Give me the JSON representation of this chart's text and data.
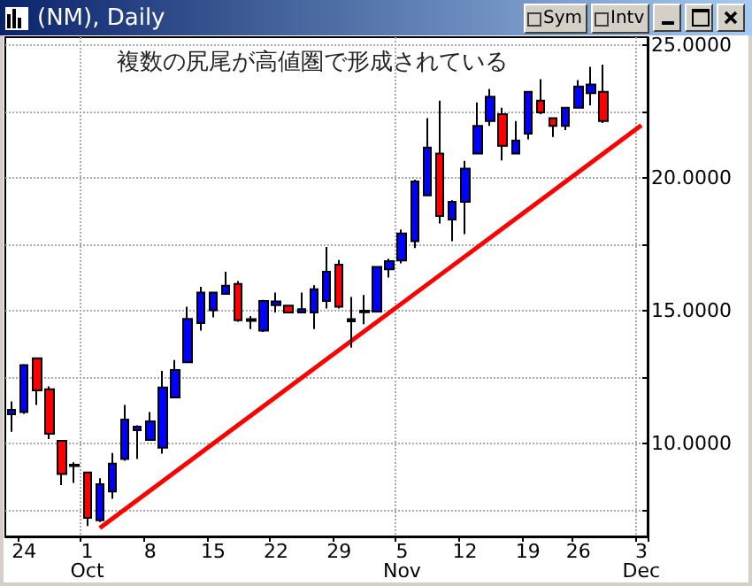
{
  "chart_data": {
    "type": "candlestick",
    "title": "(NM), Daily",
    "annotations": [
      "複数の尻尾が高値圏で形成されている",
      "Sym",
      "Intv"
    ],
    "categories": [
      null,
      "24",
      null,
      null,
      null,
      null,
      "1\nOct",
      null,
      null,
      null,
      null,
      "8",
      null,
      null,
      null,
      null,
      "15",
      null,
      null,
      null,
      null,
      "22",
      null,
      null,
      null,
      null,
      "29",
      null,
      null,
      null,
      null,
      "5\nNov",
      null,
      null,
      null,
      null,
      "12",
      null,
      null,
      null,
      null,
      "19",
      null,
      null,
      null,
      "26",
      null,
      null,
      null,
      null,
      "3\nDec"
    ],
    "ohlc": [
      [
        11.1,
        11.58,
        10.44,
        11.27
      ],
      [
        11.18,
        12.99,
        11.12,
        12.95
      ],
      [
        13.21,
        13.21,
        11.45,
        12.0
      ],
      [
        12.04,
        12.15,
        10.17,
        10.37
      ],
      [
        10.1,
        10.1,
        8.43,
        8.85
      ],
      [
        9.2,
        9.29,
        8.52,
        9.15
      ],
      [
        8.91,
        8.91,
        6.89,
        7.2
      ],
      [
        7.11,
        8.69,
        7.04,
        8.47
      ],
      [
        8.19,
        9.64,
        7.92,
        9.24
      ],
      [
        9.42,
        11.45,
        9.35,
        10.9
      ],
      [
        10.5,
        10.68,
        9.42,
        10.63
      ],
      [
        10.13,
        11.18,
        10.13,
        10.83
      ],
      [
        9.84,
        12.73,
        9.62,
        12.11
      ],
      [
        11.73,
        13.14,
        11.73,
        12.77
      ],
      [
        13.06,
        15.15,
        13.06,
        14.69
      ],
      [
        14.53,
        15.9,
        14.25,
        15.68
      ],
      [
        15.02,
        15.68,
        14.75,
        15.68
      ],
      [
        15.63,
        16.47,
        15.63,
        15.94
      ],
      [
        16.01,
        16.12,
        14.58,
        14.64
      ],
      [
        14.68,
        14.8,
        14.31,
        14.62
      ],
      [
        14.25,
        15.41,
        14.2,
        15.37
      ],
      [
        15.21,
        15.68,
        14.93,
        15.35
      ],
      [
        15.19,
        15.19,
        14.93,
        14.93
      ],
      [
        14.93,
        15.68,
        14.93,
        15.06
      ],
      [
        14.93,
        15.96,
        14.31,
        15.81
      ],
      [
        15.37,
        17.4,
        15.08,
        16.47
      ],
      [
        16.73,
        16.91,
        15.08,
        15.15
      ],
      [
        14.68,
        15.52,
        13.61,
        14.6
      ],
      [
        15.0,
        15.59,
        14.49,
        14.94
      ],
      [
        14.97,
        16.65,
        14.97,
        16.65
      ],
      [
        16.56,
        16.96,
        16.25,
        16.87
      ],
      [
        16.89,
        18.06,
        16.78,
        17.91
      ],
      [
        17.62,
        19.93,
        17.36,
        19.87
      ],
      [
        19.34,
        22.25,
        19.34,
        21.14
      ],
      [
        20.92,
        22.91,
        18.28,
        18.57
      ],
      [
        18.43,
        19.16,
        17.62,
        19.1
      ],
      [
        19.1,
        20.64,
        17.88,
        20.35
      ],
      [
        20.92,
        22.84,
        20.92,
        21.96
      ],
      [
        22.14,
        23.35,
        21.96,
        23.06
      ],
      [
        22.4,
        22.64,
        20.66,
        21.21
      ],
      [
        20.92,
        22.14,
        20.92,
        21.41
      ],
      [
        21.67,
        23.24,
        21.45,
        23.24
      ],
      [
        22.91,
        23.72,
        22.4,
        22.47
      ],
      [
        22.25,
        22.25,
        21.54,
        21.96
      ],
      [
        21.96,
        22.64,
        21.8,
        22.64
      ],
      [
        22.64,
        23.68,
        22.64,
        23.44
      ],
      [
        23.19,
        24.18,
        22.73,
        23.52
      ],
      [
        23.24,
        24.27,
        22.07,
        22.14
      ],
      null,
      null,
      null
    ],
    "colors": [
      "#0000ff",
      "#0000ff",
      "#ff0000",
      "#ff0000",
      "#ff0000",
      "#000000",
      "#ff0000",
      "#0000ff",
      "#0000ff",
      "#0000ff",
      "#0000ff",
      "#0000ff",
      "#0000ff",
      "#0000ff",
      "#0000ff",
      "#0000ff",
      "#0000ff",
      "#0000ff",
      "#ff0000",
      "#000000",
      "#0000ff",
      "#0000ff",
      "#ff0000",
      "#0000ff",
      "#0000ff",
      "#0000ff",
      "#ff0000",
      "#000000",
      "#000000",
      "#0000ff",
      "#0000ff",
      "#0000ff",
      "#0000ff",
      "#0000ff",
      "#ff0000",
      "#0000ff",
      "#0000ff",
      "#0000ff",
      "#0000ff",
      "#ff0000",
      "#0000ff",
      "#0000ff",
      "#ff0000",
      "#ff0000",
      "#0000ff",
      "#0000ff",
      "#0000ff",
      "#ff0000",
      null,
      null,
      null
    ],
    "series": [
      {
        "type": "line",
        "color": "#ff0000",
        "values": [
          null,
          null,
          null,
          null,
          null,
          null,
          null,
          6.82,
          null,
          null,
          null,
          null,
          null,
          null,
          null,
          null,
          null,
          null,
          null,
          null,
          null,
          null,
          null,
          null,
          null,
          null,
          null,
          null,
          null,
          null,
          null,
          null,
          null,
          null,
          null,
          null,
          null,
          null,
          null,
          null,
          null,
          null,
          null,
          null,
          null,
          null,
          null,
          null,
          null,
          null,
          21.98
        ]
      }
    ],
    "ylim": [
      6.5,
      25.3
    ],
    "yticks": [
      {
        "value": 7.5,
        "label": null
      },
      {
        "value": 10,
        "label": "10.0000"
      },
      {
        "value": 12.5,
        "label": null
      },
      {
        "value": 15,
        "label": "15.0000"
      },
      {
        "value": 17.5,
        "label": null
      },
      {
        "value": 20,
        "label": "20.0000"
      },
      {
        "value": 22.5,
        "label": null
      },
      {
        "value": 25,
        "label": "25.0000"
      }
    ],
    "grid": true,
    "marker": "none"
  }
}
